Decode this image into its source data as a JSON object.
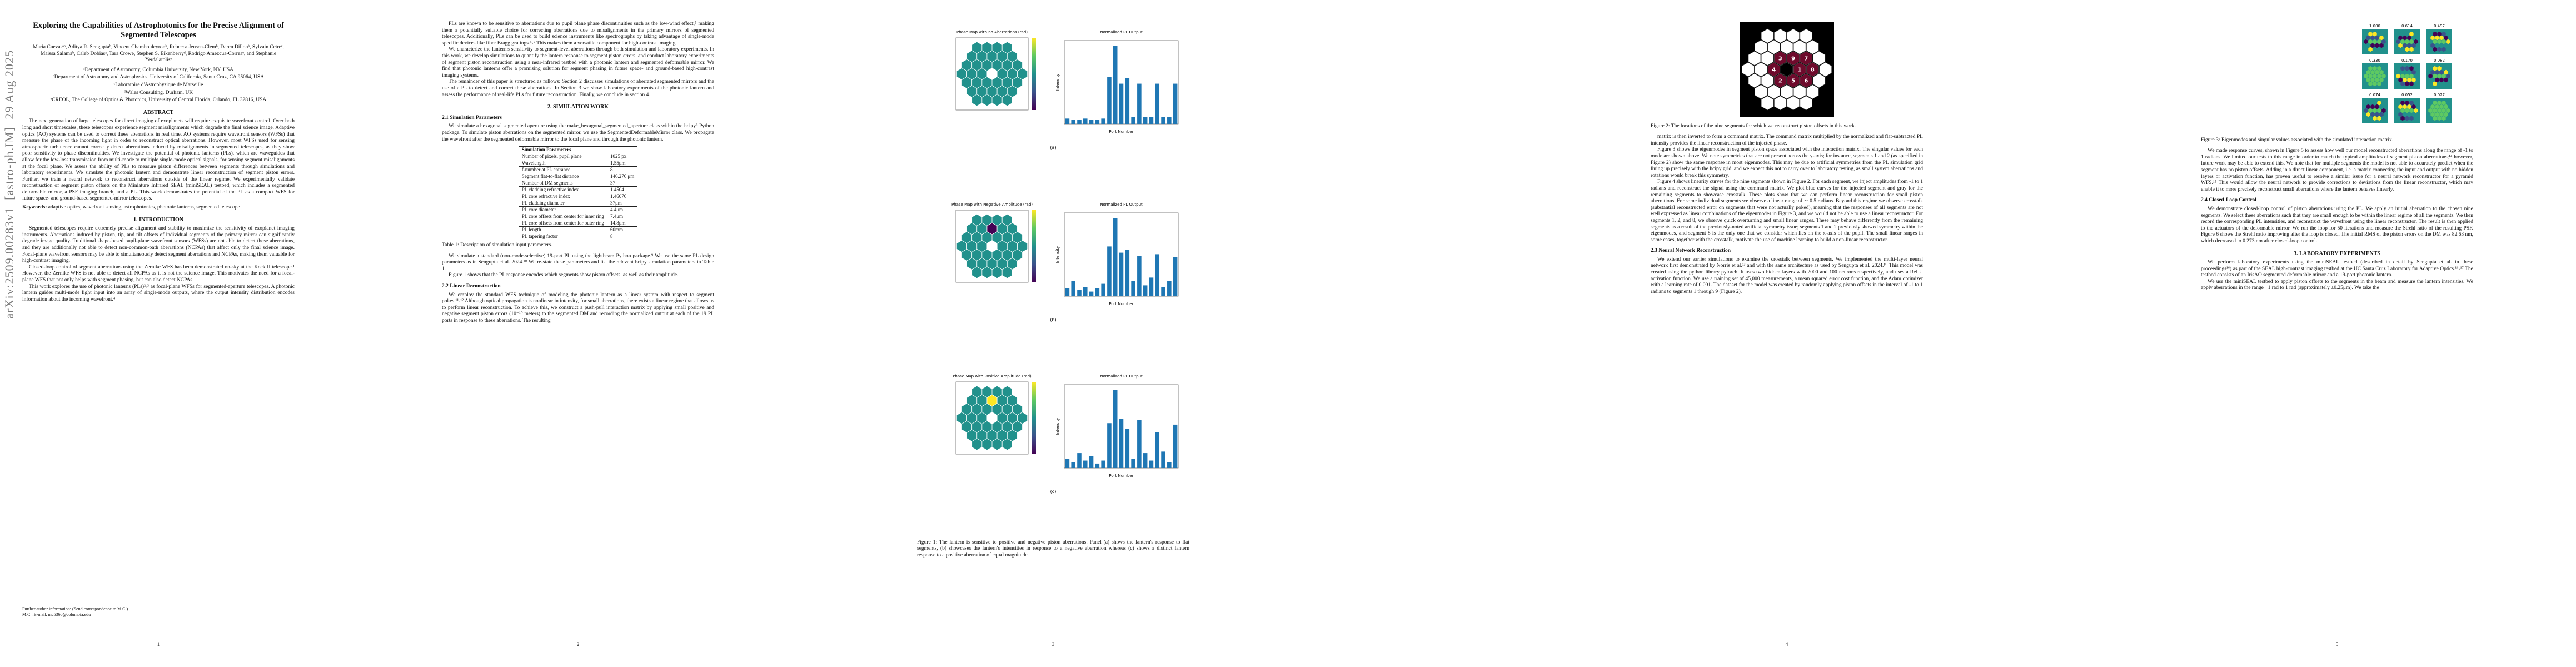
{
  "arxiv_id": "arXiv:2509.00283v1  [astro-ph.IM]  29 Aug 2025",
  "pages": [
    {
      "number": "1",
      "blocks": [
        {
          "title": "Exploring the Capabilities of Astrophotonics for the Precise Alignment of Segmented Telescopes"
        },
        {
          "authors": "Maria Cuevasᵃᵇ, Aditya R. Senguptaᵇ, Vincent Chambouleyronᵇ, Rebecca Jensen-Clemᵇ, Daren Dillonᵇ, Sylvain Cetreᶜ, Maissa Salamaᵇ, Caleb Dobiasᵃ, Tara Crowe, Stephen S. Eikenberryᵈ, Rodrigo Amezcua-Correaᵉ, and Stephanie Yerdalatolisᵉ"
        },
        {
          "affiliations": [
            "ᵃDepartment of Astronomy, Columbia University, New York, NY, USA",
            "ᵇDepartment of Astronomy and Astrophysics, University of California, Santa Cruz, CA 95064, USA",
            "ᶜLaboratoire d'Astrophysique de Marseille",
            "ᵈWales Consulting, Durham, UK",
            "ᵉCREOL, The College of Optics & Photonics, University of Central Florida, Orlando, FL 32816, USA"
          ]
        },
        {
          "heading": "ABSTRACT"
        },
        {
          "paragraph": "The next generation of large telescopes for direct imaging of exoplanets will require exquisite wavefront control. Over both long and short timescales, these telescopes experience segment misalignments which degrade the final science image. Adaptive optics (AO) systems can be used to correct these aberrations in real time. AO systems require wavefront sensors (WFSs) that measure the phase of the incoming light in order to reconstruct optical aberrations. However, most WFSs used for sensing atmospheric turbulence cannot correctly detect aberrations induced by misalignments in segmented telescopes, as they show poor sensitivity to phase discontinuities. We investigate the potential of photonic lanterns (PLs), which are waveguides that allow for the low-loss transmission from multi-mode to multiple single-mode optical signals, for sensing segment misalignments at the focal plane. We assess the ability of PLs to measure piston differences between segments through simulations and laboratory experiments. We simulate the photonic lantern and demonstrate linear reconstruction of segment piston errors. Further, we train a neural network to reconstruct aberrations outside of the linear regime. We experimentally validate reconstruction of segment piston offsets on the Miniature Infrared SEAL (miniSEAL) testbed, which includes a segmented deformable mirror, a PSF imaging branch, and a PL. This work demonstrates the potential of the PL as a compact WFS for future space- and ground-based segmented-mirror telescopes."
        },
        {
          "keywords": {
            "label": "Keywords:",
            "text": "adaptive optics, wavefront sensing, astrophotonics, photonic lanterns, segmented telescope"
          }
        },
        {
          "heading": "1. INTRODUCTION"
        },
        {
          "paragraph": "Segmented telescopes require extremely precise alignment and stability to maximize the sensitivity of exoplanet imaging instruments. Aberrations induced by piston, tip, and tilt offsets of individual segments of the primary mirror can significantly degrade image quality. Traditional shape-based pupil-plane wavefront sensors (WFSs) are not able to detect these aberrations, and they are additionally not able to detect non-common-path aberrations (NCPAs) that affect only the final science image. Focal-plane wavefront sensors may be able to simultaneously detect segment aberrations and NCPAs, making them valuable for high-contrast imaging."
        },
        {
          "paragraph": "Closed-loop control of segment aberrations using the Zernike WFS has been demonstrated on-sky at the Keck II telescope.¹ However, the Zernike WFS is not able to detect all NCPAs as it is not the science image. This motivates the need for a focal-plane WFS that not only helps with segment phasing, but can also detect NCPAs."
        },
        {
          "paragraph": "This work explores the use of photonic lanterns (PLs)²˒³ as focal-plane WFSs for segmented-aperture telescopes. A photonic lantern guides multi-mode light input into an array of single-mode outputs, where the output intensity distribution encodes information about the incoming wavefront.⁴"
        }
      ],
      "footnotes": [
        "Further author information: (Send correspondence to M.C.)",
        "M.C.: E-mail: mc5360@columbia.edu"
      ]
    },
    {
      "number": "2",
      "blocks": [
        {
          "paragraph": "PLs are known to be sensitive to aberrations due to pupil plane phase discontinuities such as the low-wind effect,⁵ making them a potentially suitable choice for correcting aberrations due to misalignments in the primary mirrors of segmented telescopes. Additionally, PLs can be used to build science instruments like spectrographs by taking advantage of single-mode specific devices like fiber Bragg gratings.⁶˒⁷ This makes them a versatile component for high-contrast imaging."
        },
        {
          "paragraph": "We characterize the lantern's sensitivity to segment-level aberrations through both simulation and laboratory experiments. In this work, we develop simulations to quantify the lantern response to segment piston errors, and conduct laboratory experiments of segment piston reconstruction using a near-infrared testbed with a photonic lantern and segmented deformable mirror. We find that photonic lanterns offer a promising solution for segment phasing in future space- and ground-based high-contrast imaging systems."
        },
        {
          "paragraph": "The remainder of this paper is structured as follows: Section 2 discusses simulations of aberrated segmented mirrors and the use of a PL to detect and correct these aberrations. In Section 3 we show laboratory experiments of the photonic lantern and assess the performance of real-life PLs for future reconstruction. Finally, we conclude in section 4."
        },
        {
          "heading": "2. SIMULATION WORK"
        },
        {
          "subheading": "2.1 Simulation Parameters"
        },
        {
          "paragraph": "We simulate a hexagonal segmented aperture using the make_hexagonal_segmented_aperture class within the hcipy⁸ Python package. To simulate piston aberrations on the segmented mirror, we use the SegmentedDeformableMirror class. We propagate the wavefront after the segmented deformable mirror to the focal plane and through the photonic lantern."
        },
        {
          "table": {
            "title": "Simulation Parameters",
            "rows": [
              [
                "Number of pixels, pupil plane",
                "1025 px"
              ],
              [
                "Wavelength",
                "1.55μm"
              ],
              [
                "f-number at PL entrance",
                "8"
              ],
              [
                "Segment flat-to-flat distance",
                "146.276 μm"
              ],
              [
                "Number of DM segments",
                "37"
              ],
              [
                "PL cladding refractive index",
                "1.4504"
              ],
              [
                "PL core refractive index",
                "1.46076"
              ],
              [
                "PL cladding diameter",
                "37μm"
              ],
              [
                "PL core diameter",
                "4.4μm"
              ],
              [
                "PL core offsets from center for inner ring",
                "7.4μm"
              ],
              [
                "PL core offsets from center for outer ring",
                "14.8μm"
              ],
              [
                "PL length",
                "60mm"
              ],
              [
                "PL tapering factor",
                "8"
              ]
            ]
          }
        },
        {
          "caption": "Table 1: Description of simulation input parameters."
        },
        {
          "paragraph": "We simulate a standard (non-mode-selective) 19-port PL using the lightbeam Python package.⁹ We use the same PL design parameters as in Sengupta et al. 2024.¹⁰ We re-state these parameters and list the relevant hcipy simulation parameters in Table 1."
        },
        {
          "paragraph": "Figure 1 shows that the PL response encodes which segments show piston offsets, as well as their amplitude."
        },
        {
          "subheading": "2.2 Linear Reconstruction"
        },
        {
          "paragraph": "We employ the standard WFS technique of modeling the photonic lantern as a linear system with respect to segment pokes.¹¹˒¹² Although optical propagation is nonlinear in intensity, for small aberrations, there exists a linear regime that allows us to perform linear reconstruction. To achieve this, we construct a push-pull interaction matrix by applying small positive and negative segment piston errors (10⁻¹⁰ meters) to the segmented DM and recording the normalized output at each of the 19 PL ports in response to these aberrations. The resulting"
        }
      ]
    },
    {
      "number": "3",
      "blocks": [
        {
          "figure_panels": [
            {
              "map_title": "Phase Map with no Aberrations (rad)",
              "chart_title": "Normalized PL Output",
              "x_label": "Port Number",
              "y_label": "Intensity",
              "label": "(a)",
              "bars": [
                0.04,
                0.03,
                0.03,
                0.04,
                0.03,
                0.03,
                0.04,
                0.35,
                0.58,
                0.3,
                0.34,
                0.05,
                0.3,
                0.05,
                0.05,
                0.3,
                0.05,
                0.05,
                0.3
              ]
            },
            {
              "map_title": "Phase Map with Negative Amplitude (rad)",
              "chart_title": "Normalized PL Output",
              "x_label": "Port Number",
              "y_label": "Intensity",
              "label": "(b)",
              "segment_color": "#440154",
              "bars": [
                0.05,
                0.1,
                0.04,
                0.06,
                0.03,
                0.05,
                0.08,
                0.32,
                0.5,
                0.28,
                0.3,
                0.1,
                0.26,
                0.07,
                0.12,
                0.27,
                0.06,
                0.1,
                0.25
              ]
            },
            {
              "map_title": "Phase Map with Positive Amplitude (rad)",
              "chart_title": "Normalized PL Output",
              "x_label": "Port Number",
              "y_label": "Intensity",
              "label": "(c)",
              "segment_color": "#fde725",
              "bars": [
                0.06,
                0.04,
                0.1,
                0.05,
                0.08,
                0.03,
                0.05,
                0.3,
                0.52,
                0.33,
                0.26,
                0.06,
                0.32,
                0.1,
                0.05,
                0.24,
                0.11,
                0.04,
                0.29
              ]
            }
          ]
        },
        {
          "caption": "Figure 1: The lantern is sensitive to positive and negative piston aberrations. Panel (a) shows the lantern's response to flat segments, (b) showcases the lantern's intensities in response to a negative aberration whereas (c) shows a distinct lantern response to a positive aberration of equal magnitude."
        }
      ]
    },
    {
      "number": "4",
      "blocks": [
        {
          "hex_figure": {
            "segment_labels": [
              "1",
              "2",
              "3",
              "4",
              "5",
              "6",
              "7",
              "8",
              "9"
            ]
          }
        },
        {
          "caption": "Figure 2: The locations of the nine segments for which we reconstruct piston offsets in this work."
        },
        {
          "paragraph": "matrix is then inverted to form a command matrix. The command matrix multiplied by the normalized and flat-subtracted PL intensity provides the linear reconstruction of the injected phase."
        },
        {
          "paragraph": "Figure 3 shows the eigenmodes in segment piston space associated with the interaction matrix. The singular values for each mode are shown above. We note symmetries that are not present across the y-axis; for instance, segments 1 and 2 (as specified in Figure 2) show the same response in most eigenmodes. This may be due to artificial symmetries from the PL simulation grid lining up precisely with the hcipy grid, and we expect this not to carry over to laboratory testing, as small system aberrations and rotations would break this symmetry."
        },
        {
          "paragraph": "Figure 4 shows linearity curves for the nine segments shown in Figure 2. For each segment, we inject amplitudes from -1 to 1 radians and reconstruct the signal using the command matrix. We plot blue curves for the injected segment and gray for the remaining segments to showcase crosstalk. These plots show that we can perform linear reconstruction for small piston aberrations. For some individual segments we observe a linear range of ∼ 0.5 radians. Beyond this regime we observe crosstalk (substantial reconstructed error on segments that were not actually poked), meaning that the responses of all segments are not well expressed as linear combinations of the eigenmodes in Figure 3, and we would not be able to use a linear reconstructor. For segments 1, 2, and 8, we observe quick overturning and small linear ranges. These may behave differently from the remaining segments as a result of the previously-noted artificial symmetry issue; segments 1 and 2 previously showed symmetry within the eigenmodes, and segment 8 is the only one that we consider which lies on the x-axis of the pupil. The small linear ranges in some cases, together with the crosstalk, motivate the use of machine learning to build a non-linear reconstructor."
        },
        {
          "subheading": "2.3 Neural Network Reconstruction"
        },
        {
          "paragraph": "We extend our earlier simulations to examine the crosstalk between segments. We implemented the multi-layer neural network first demonstrated by Norris et al.¹³ and with the same architecture as used by Sengupta et al. 2024.¹⁰ This model was created using the python library pytorch. It uses two hidden layers with 2000 and 100 neurons respectively, and uses a ReLU activation function. We use a training set of 45,000 measurements, a mean squared error cost function, and the Adam optimizer with a learning rate of 0.001. The dataset for the model was created by randomly applying piston offsets in the interval of -1 to 1 radians to segments 1 through 9 (Figure 2)."
        }
      ]
    },
    {
      "number": "5",
      "blocks": [
        {
          "eigen_figure": {
            "singular_values": [
              "1.000",
              "0.614",
              "0.497",
              "0.330",
              "0.170",
              "0.082",
              "0.074",
              "0.052",
              "0.027"
            ]
          }
        },
        {
          "caption": "Figure 3: Eigenmodes and singular values associated with the simulated interaction matrix."
        },
        {
          "paragraph": "We made response curves, shown in Figure 5 to assess how well our model reconstructed aberrations along the range of -1 to 1 radians. We limited our tests to this range in order to match the typical amplitudes of segment piston aberrations;¹⁴ however, future work may be able to extend this. We note that for multiple segments the model is not able to accurately predict when the segment has no piston offsets. Adding in a direct linear component, i.e. a matrix connecting the input and output with no hidden layers or activation function, has proven useful to resolve a similar issue for a neural network reconstructor for a pyramid WFS.¹⁵ This would allow the neural network to provide corrections to deviations from the linear reconstructor, which may enable it to more precisely reconstruct small aberrations where the lantern behaves linearly."
        },
        {
          "subheading": "2.4 Closed-Loop Control"
        },
        {
          "paragraph": "We demonstrate closed-loop control of piston aberrations using the PL. We apply an initial aberration to the chosen nine segments. We select these aberrations such that they are small enough to be within the linear regime of all the segments. We then record the corresponding PL intensities, and reconstruct the wavefront using the linear reconstructor. The result is then applied to the actuators of the deformable mirror. We run the loop for 50 iterations and measure the Strehl ratio of the resulting PSF. Figure 6 shows the Strehl ratio improving after the loop is closed. The initial RMS of the piston errors on the DM was 82.63 nm, which decreased to 0.273 nm after closed-loop control."
        },
        {
          "heading": "3. LABORATORY EXPERIMENTS"
        },
        {
          "paragraph": "We perform laboratory experiments using the miniSEAL testbed (described in detail by Sengupta et al. in these proceedings¹⁶) as part of the SEAL high-contrast imaging testbed at the UC Santa Cruz Laboratory for Adaptive Optics.¹⁶˒¹⁷ The testbed consists of an IrisAO segmented deformable mirror and a 19-port photonic lantern."
        },
        {
          "paragraph": "We use the miniSEAL testbed to apply piston offsets to the segments in the beam and measure the lantern intensities. We apply aberrations in the range −1 rad to 1 rad (approximately ±0.25μm). We take the"
        }
      ]
    }
  ]
}
